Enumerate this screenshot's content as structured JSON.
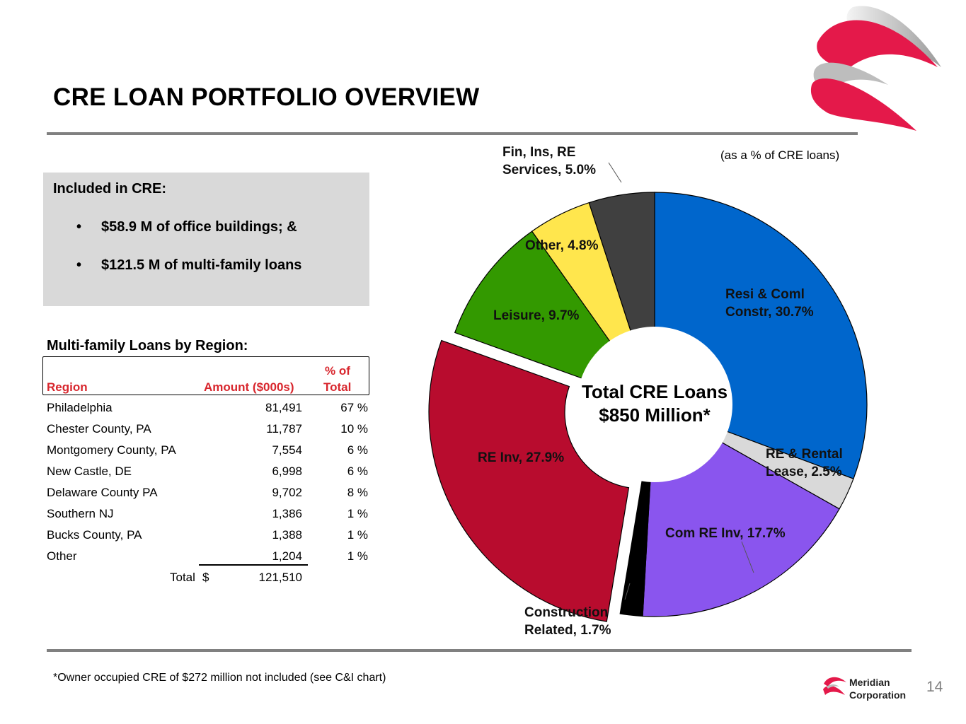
{
  "slide": {
    "title": "CRE LOAN PORTFOLIO OVERVIEW",
    "page_number": "14",
    "footnote": "*Owner occupied CRE of $272 million not included (see C&I chart)",
    "brand": {
      "line1": "Meridian",
      "line2": "Corporation"
    },
    "colors": {
      "accent_red": "#d8262d",
      "rule_gray": "#808080",
      "box_gray": "#d9d9d9"
    }
  },
  "included": {
    "heading": "Included in CRE:",
    "bullet": "•",
    "items": [
      "$58.9 M of office buildings; &",
      "$121.5 M of multi-family loans"
    ]
  },
  "multifamily": {
    "heading": "Multi-family Loans by Region:",
    "headers": {
      "region": "Region",
      "amount": "Amount ($000s)",
      "pct_line1": "% of",
      "pct_line2": "Total"
    },
    "rows": [
      {
        "region": "Philadelphia",
        "amount": "81,491",
        "pct": "67 %"
      },
      {
        "region": "Chester County, PA",
        "amount": "11,787",
        "pct": "10 %"
      },
      {
        "region": "Montgomery County, PA",
        "amount": "7,554",
        "pct": "6 %"
      },
      {
        "region": "New Castle, DE",
        "amount": "6,998",
        "pct": "6 %"
      },
      {
        "region": "Delaware County PA",
        "amount": "9,702",
        "pct": "8 %"
      },
      {
        "region": "Southern NJ",
        "amount": "1,386",
        "pct": "1 %"
      },
      {
        "region": "Bucks County, PA",
        "amount": "1,388",
        "pct": "1 %"
      },
      {
        "region": "Other",
        "amount": "1,204",
        "pct": "1 %"
      }
    ],
    "total_label": "Total",
    "total_currency": "$",
    "total_amount": "121,510"
  },
  "chart_data": {
    "type": "pie",
    "note": "(as a % of CRE loans)",
    "center_line1": "Total CRE Loans",
    "center_line2": "$850 Million*",
    "slices": [
      {
        "name": "Resi & Coml Constr",
        "value": 30.7,
        "label_lines": [
          "Resi & Coml",
          "Constr, 30.7%"
        ],
        "color": "#0066cc",
        "exploded": false
      },
      {
        "name": "RE & Rental Lease",
        "value": 2.5,
        "label_lines": [
          "RE & Rental",
          "Lease, 2.5%"
        ],
        "color": "#d9d9d9",
        "exploded": false
      },
      {
        "name": "Com RE Inv",
        "value": 17.7,
        "label_lines": [
          "Com RE Inv, 17.7%"
        ],
        "color": "#8a55ee",
        "exploded": false
      },
      {
        "name": "Construction Related",
        "value": 1.7,
        "label_lines": [
          "Construction",
          "Related, 1.7%"
        ],
        "color": "#000000",
        "exploded": false
      },
      {
        "name": "RE Inv",
        "value": 27.9,
        "label_lines": [
          "RE Inv, 27.9%"
        ],
        "color": "#b80c2e",
        "exploded": true
      },
      {
        "name": "Leisure",
        "value": 9.7,
        "label_lines": [
          "Leisure, 9.7%"
        ],
        "color": "#339900",
        "exploded": false
      },
      {
        "name": "Other",
        "value": 4.8,
        "label_lines": [
          "Other, 4.8%"
        ],
        "color": "#ffe64d",
        "exploded": false
      },
      {
        "name": "Fin, Ins, RE Services",
        "value": 5.0,
        "label_lines": [
          "Fin, Ins, RE",
          "Services, 5.0%"
        ],
        "color": "#404040",
        "exploded": false
      }
    ]
  }
}
